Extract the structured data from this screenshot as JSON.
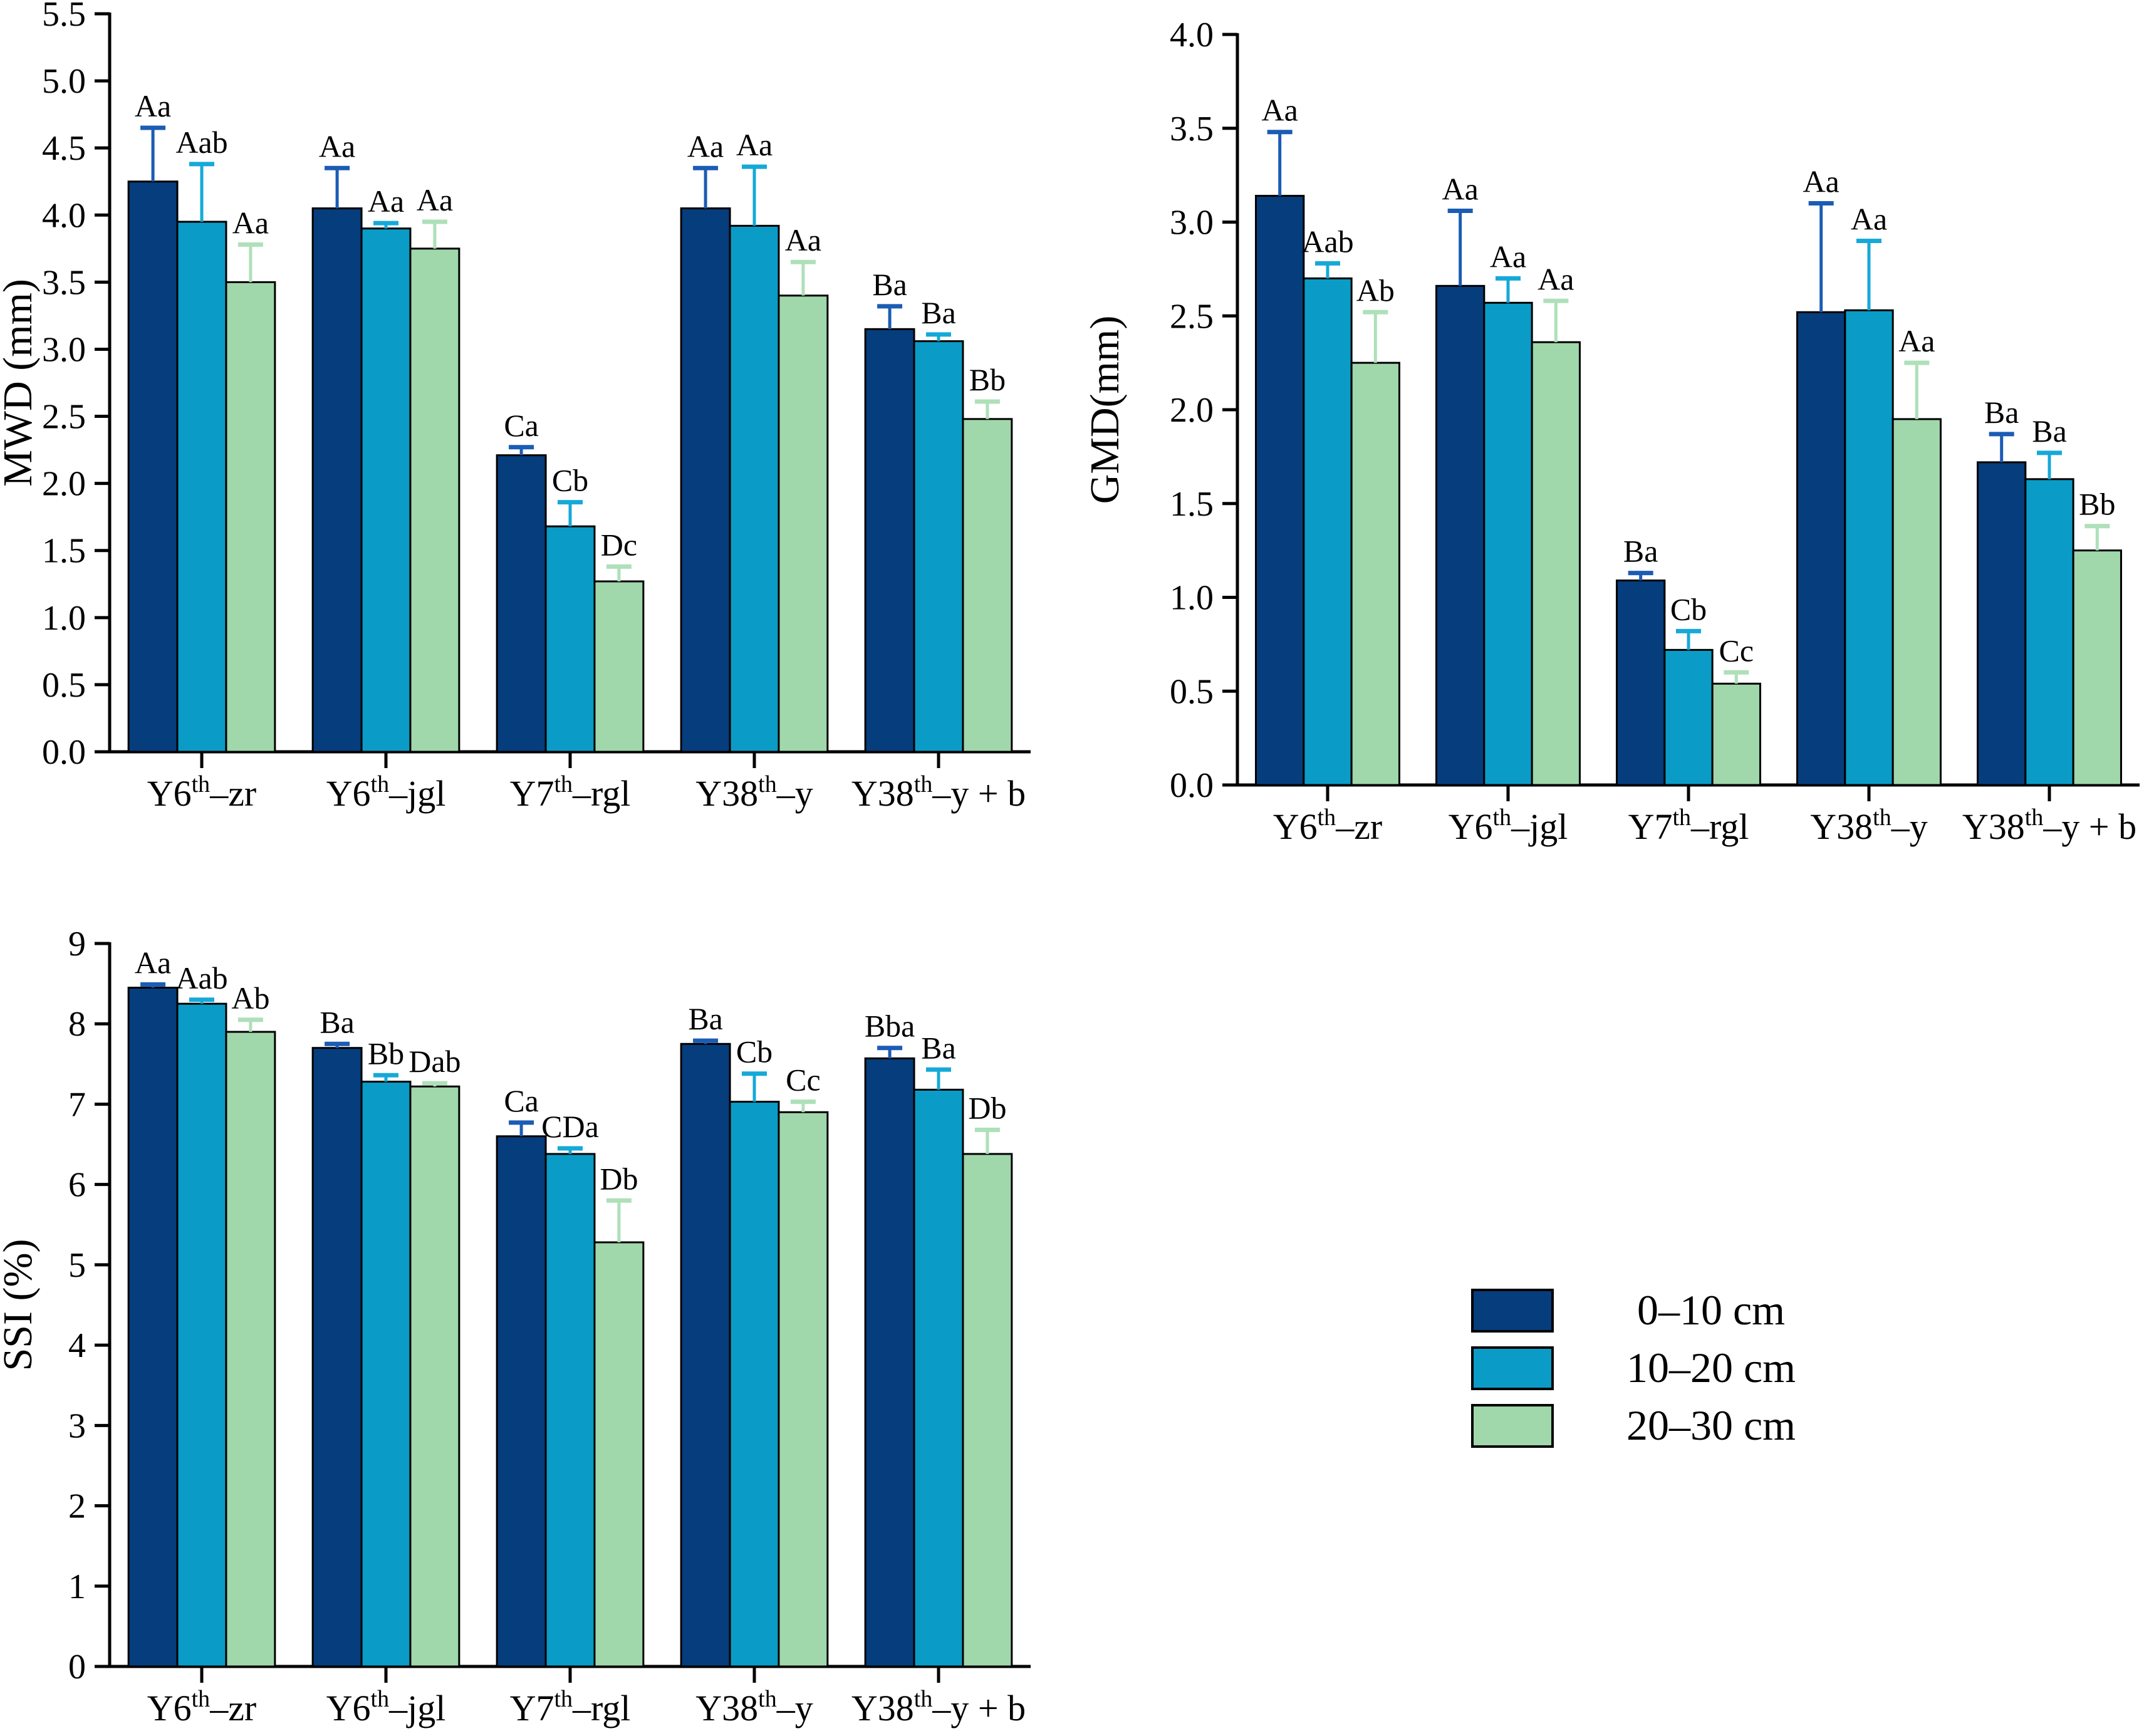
{
  "page": {
    "background": "#ffffff"
  },
  "colors": {
    "series": [
      "#063d7c",
      "#0a9cc6",
      "#a0d7ab"
    ],
    "error": [
      "#1b5cb4",
      "#15a9d8",
      "#aee0b9"
    ],
    "axis": "#000000",
    "bar_outline": "#000000",
    "text": "#000000"
  },
  "legend": {
    "items": [
      {
        "label": "0–10 cm",
        "color": "#063d7c"
      },
      {
        "label": "10–20 cm",
        "color": "#0a9cc6"
      },
      {
        "label": "20–30 cm",
        "color": "#a0d7ab"
      }
    ]
  },
  "chart_data": [
    {
      "type": "bar",
      "ylabel": "MWD (mm)",
      "ylim": [
        0,
        5.5
      ],
      "ytick_step": 0.5,
      "ytick_decimals": 1,
      "grid": false,
      "legend_position": "none",
      "categories": [
        "Y6^th^–zr",
        "Y6^th^–jgl",
        "Y7^th^–rgl",
        "Y38^th^–y",
        "Y38^th^–y + b"
      ],
      "series": [
        {
          "name": "0–10 cm",
          "values": [
            4.25,
            4.05,
            2.21,
            4.05,
            3.15
          ],
          "errors": [
            0.4,
            0.3,
            0.06,
            0.3,
            0.17
          ],
          "sig_labels": [
            "Aa",
            "Aa",
            "Ca",
            "Aa",
            "Ba"
          ]
        },
        {
          "name": "10–20 cm",
          "values": [
            3.95,
            3.9,
            1.68,
            3.92,
            3.06
          ],
          "errors": [
            0.43,
            0.04,
            0.18,
            0.44,
            0.05
          ],
          "sig_labels": [
            "Aab",
            "Aa",
            "Cb",
            "Aa",
            "Ba"
          ]
        },
        {
          "name": "20–30 cm",
          "values": [
            3.5,
            3.75,
            1.27,
            3.4,
            2.48
          ],
          "errors": [
            0.28,
            0.2,
            0.11,
            0.25,
            0.13
          ],
          "sig_labels": [
            "Aa",
            "Aa",
            "Dc",
            "Aa",
            "Bb"
          ]
        }
      ]
    },
    {
      "type": "bar",
      "ylabel": "GMD(mm)",
      "ylim": [
        0,
        4.0
      ],
      "ytick_step": 0.5,
      "ytick_decimals": 1,
      "grid": false,
      "legend_position": "none",
      "categories": [
        "Y6^th^–zr",
        "Y6^th^–jgl",
        "Y7^th^–rgl",
        "Y38^th^–y",
        "Y38^th^–y + b"
      ],
      "series": [
        {
          "name": "0–10 cm",
          "values": [
            3.14,
            2.66,
            1.09,
            2.52,
            1.72
          ],
          "errors": [
            0.34,
            0.4,
            0.04,
            0.58,
            0.15
          ],
          "sig_labels": [
            "Aa",
            "Aa",
            "Ba",
            "Aa",
            "Ba"
          ]
        },
        {
          "name": "10–20 cm",
          "values": [
            2.7,
            2.57,
            0.72,
            2.53,
            1.63
          ],
          "errors": [
            0.08,
            0.13,
            0.1,
            0.37,
            0.14
          ],
          "sig_labels": [
            "Aab",
            "Aa",
            "Cb",
            "Aa",
            "Ba"
          ]
        },
        {
          "name": "20–30 cm",
          "values": [
            2.25,
            2.36,
            0.54,
            1.95,
            1.25
          ],
          "errors": [
            0.27,
            0.22,
            0.06,
            0.3,
            0.13
          ],
          "sig_labels": [
            "Ab",
            "Aa",
            "Cc",
            "Aa",
            "Bb"
          ]
        }
      ]
    },
    {
      "type": "bar",
      "ylabel": "SSI (%)",
      "ylim": [
        0,
        9
      ],
      "ytick_step": 1,
      "ytick_decimals": 0,
      "grid": false,
      "legend_position": "bottom-right-of-figure",
      "categories": [
        "Y6^th^–zr",
        "Y6^th^–jgl",
        "Y7^th^–rgl",
        "Y38^th^–y",
        "Y38^th^–y + b"
      ],
      "series": [
        {
          "name": "0–10 cm",
          "values": [
            8.45,
            7.7,
            6.6,
            7.75,
            7.57
          ],
          "errors": [
            0.04,
            0.05,
            0.17,
            0.04,
            0.13
          ],
          "sig_labels": [
            "Aa",
            "Ba",
            "Ca",
            "Ba",
            "Bba"
          ]
        },
        {
          "name": "10–20 cm",
          "values": [
            8.25,
            7.28,
            6.38,
            7.03,
            7.18
          ],
          "errors": [
            0.05,
            0.08,
            0.07,
            0.35,
            0.25
          ],
          "sig_labels": [
            "Aab",
            "Bb",
            "CDa",
            "Cb",
            "Ba"
          ]
        },
        {
          "name": "20–30 cm",
          "values": [
            7.9,
            7.22,
            5.28,
            6.9,
            6.38
          ],
          "errors": [
            0.15,
            0.04,
            0.52,
            0.13,
            0.3
          ],
          "sig_labels": [
            "Ab",
            "Dab",
            "Db",
            "Cc",
            "Db"
          ]
        }
      ]
    }
  ]
}
